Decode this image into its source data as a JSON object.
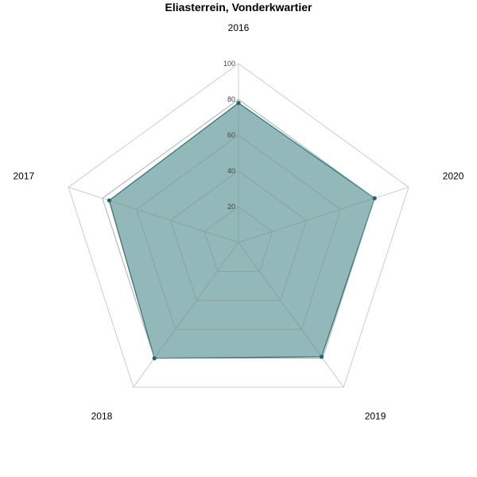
{
  "chart_data": {
    "type": "radar",
    "title": "Eliasterrein, Vonderkwartier",
    "categories": [
      "2016",
      "2020",
      "2019",
      "2018",
      "2017"
    ],
    "series": [
      {
        "values": [
          78,
          80,
          79,
          80,
          76
        ]
      }
    ],
    "rlim": [
      0,
      100
    ],
    "r_ticks": [
      "20",
      "40",
      "60",
      "80",
      "100"
    ],
    "grid": true,
    "legend": "none",
    "colors": {
      "fill": "#3a7d7f",
      "fill_opacity": 0.55,
      "stroke": "#2f6e70",
      "point": "#2b6365",
      "outer_grid": "#cccccc",
      "inner_grid": "#9aa5a5"
    }
  }
}
